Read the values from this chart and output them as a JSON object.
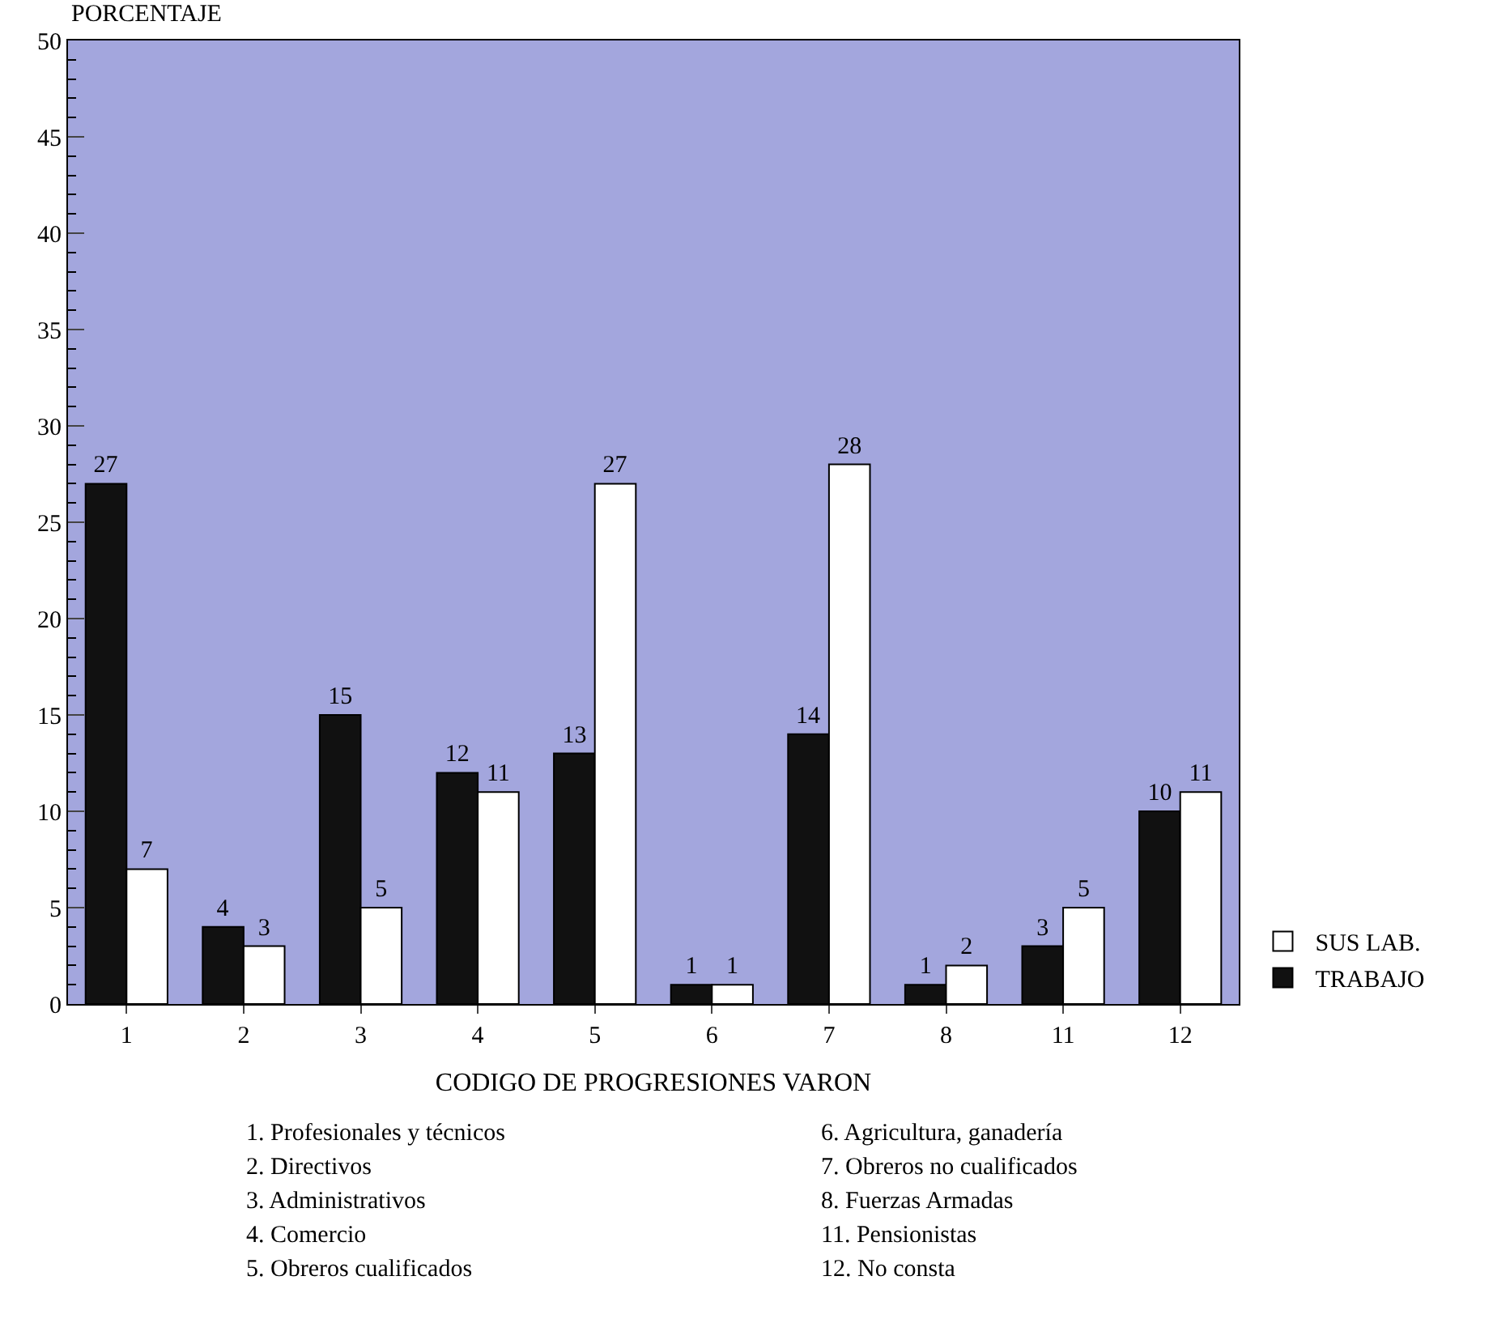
{
  "chart_data": {
    "type": "bar",
    "ylabel": "PORCENTAJE",
    "xlabel": "CODIGO DE PROGRESIONES VARON",
    "categories": [
      "1",
      "2",
      "3",
      "4",
      "5",
      "6",
      "7",
      "8",
      "11",
      "12"
    ],
    "series": [
      {
        "name": "TRABAJO",
        "color": "#111111",
        "values": [
          27,
          4,
          15,
          12,
          13,
          1,
          14,
          1,
          3,
          10
        ]
      },
      {
        "name": "SUS LAB.",
        "color": "#ffffff",
        "values": [
          7,
          3,
          5,
          11,
          27,
          1,
          28,
          2,
          5,
          11
        ]
      }
    ],
    "ylim": [
      0,
      50
    ],
    "yticks": [
      0,
      5,
      10,
      15,
      20,
      25,
      30,
      35,
      40,
      45,
      50
    ],
    "data_labels": true,
    "legend": "bottom right",
    "grid": false,
    "annotations": [
      "1. Profesionales y técnicos",
      "2. Directivos",
      "3. Administrativos",
      "4. Comercio",
      "5. Obreros cualificados",
      "6. Agricultura, ganadería",
      "7. Obreros no cualificados",
      "8. Fuerzas Armadas",
      "11. Pensionistas",
      "12. No consta"
    ]
  }
}
